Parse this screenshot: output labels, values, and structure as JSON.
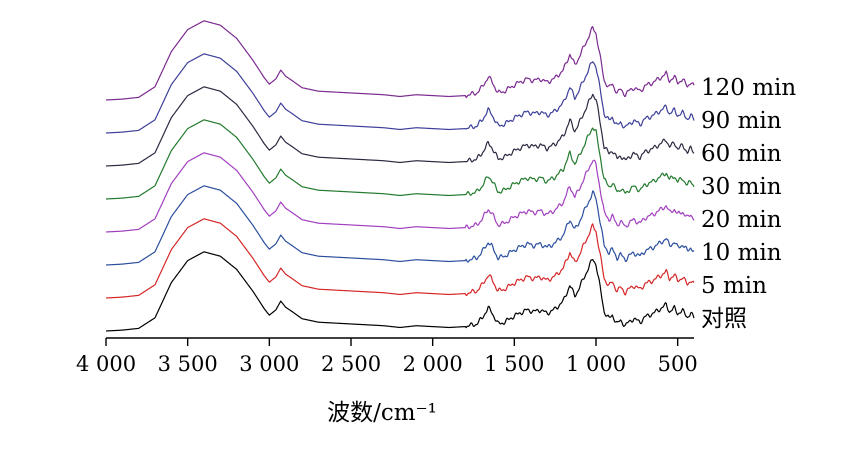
{
  "chart_data": {
    "type": "line",
    "title": "",
    "xlabel": "波数/cm⁻¹",
    "ylabel": "",
    "xlim": [
      4000,
      400
    ],
    "x_reversed": true,
    "x_ticks": [
      {
        "value": 4000,
        "label": "4 000"
      },
      {
        "value": 3500,
        "label": "3 500"
      },
      {
        "value": 3000,
        "label": "3 000"
      },
      {
        "value": 2500,
        "label": "2 500"
      },
      {
        "value": 2000,
        "label": "2 000"
      },
      {
        "value": 1500,
        "label": "1 500"
      },
      {
        "value": 1000,
        "label": "1 000"
      },
      {
        "value": 500,
        "label": "500"
      }
    ],
    "y_axis_visible": false,
    "grid": false,
    "legend": "labels at right end of each curve",
    "series": [
      {
        "name": "对照",
        "color": "#000000",
        "offset": 0
      },
      {
        "name": "5 min",
        "color": "#d62728",
        "offset": 1
      },
      {
        "name": "10 min",
        "color": "#2b4f9e",
        "offset": 2
      },
      {
        "name": "20 min",
        "color": "#a23fbf",
        "offset": 3
      },
      {
        "name": "30 min",
        "color": "#237a2e",
        "offset": 4
      },
      {
        "name": "60 min",
        "color": "#2a2a40",
        "offset": 5
      },
      {
        "name": "90 min",
        "color": "#3d3f9a",
        "offset": 6
      },
      {
        "name": "120 min",
        "color": "#7b2a90",
        "offset": 7
      }
    ],
    "spectrum_shape": [
      [
        4000,
        0.0
      ],
      [
        3900,
        0.01
      ],
      [
        3800,
        0.03
      ],
      [
        3700,
        0.15
      ],
      [
        3650,
        0.35
      ],
      [
        3600,
        0.55
      ],
      [
        3500,
        0.8
      ],
      [
        3400,
        0.9
      ],
      [
        3300,
        0.85
      ],
      [
        3200,
        0.7
      ],
      [
        3100,
        0.45
      ],
      [
        3030,
        0.25
      ],
      [
        3000,
        0.18
      ],
      [
        2960,
        0.24
      ],
      [
        2930,
        0.34
      ],
      [
        2900,
        0.27
      ],
      [
        2860,
        0.22
      ],
      [
        2800,
        0.14
      ],
      [
        2700,
        0.1
      ],
      [
        2500,
        0.08
      ],
      [
        2300,
        0.06
      ],
      [
        2200,
        0.04
      ],
      [
        2100,
        0.06
      ],
      [
        2000,
        0.05
      ],
      [
        1900,
        0.04
      ],
      [
        1800,
        0.05
      ],
      [
        1730,
        0.08
      ],
      [
        1700,
        0.14
      ],
      [
        1660,
        0.26
      ],
      [
        1640,
        0.22
      ],
      [
        1600,
        0.08
      ],
      [
        1560,
        0.1
      ],
      [
        1510,
        0.16
      ],
      [
        1470,
        0.2
      ],
      [
        1420,
        0.24
      ],
      [
        1380,
        0.22
      ],
      [
        1340,
        0.24
      ],
      [
        1300,
        0.2
      ],
      [
        1250,
        0.25
      ],
      [
        1200,
        0.34
      ],
      [
        1160,
        0.52
      ],
      [
        1130,
        0.4
      ],
      [
        1110,
        0.46
      ],
      [
        1080,
        0.58
      ],
      [
        1050,
        0.7
      ],
      [
        1020,
        0.82
      ],
      [
        1000,
        0.76
      ],
      [
        980,
        0.55
      ],
      [
        950,
        0.22
      ],
      [
        920,
        0.14
      ],
      [
        900,
        0.18
      ],
      [
        870,
        0.08
      ],
      [
        850,
        0.12
      ],
      [
        820,
        0.06
      ],
      [
        800,
        0.1
      ],
      [
        770,
        0.14
      ],
      [
        730,
        0.1
      ],
      [
        700,
        0.16
      ],
      [
        650,
        0.2
      ],
      [
        600,
        0.26
      ],
      [
        570,
        0.3
      ],
      [
        550,
        0.22
      ],
      [
        520,
        0.26
      ],
      [
        500,
        0.2
      ],
      [
        470,
        0.23
      ],
      [
        440,
        0.16
      ],
      [
        420,
        0.2
      ],
      [
        400,
        0.15
      ]
    ]
  }
}
